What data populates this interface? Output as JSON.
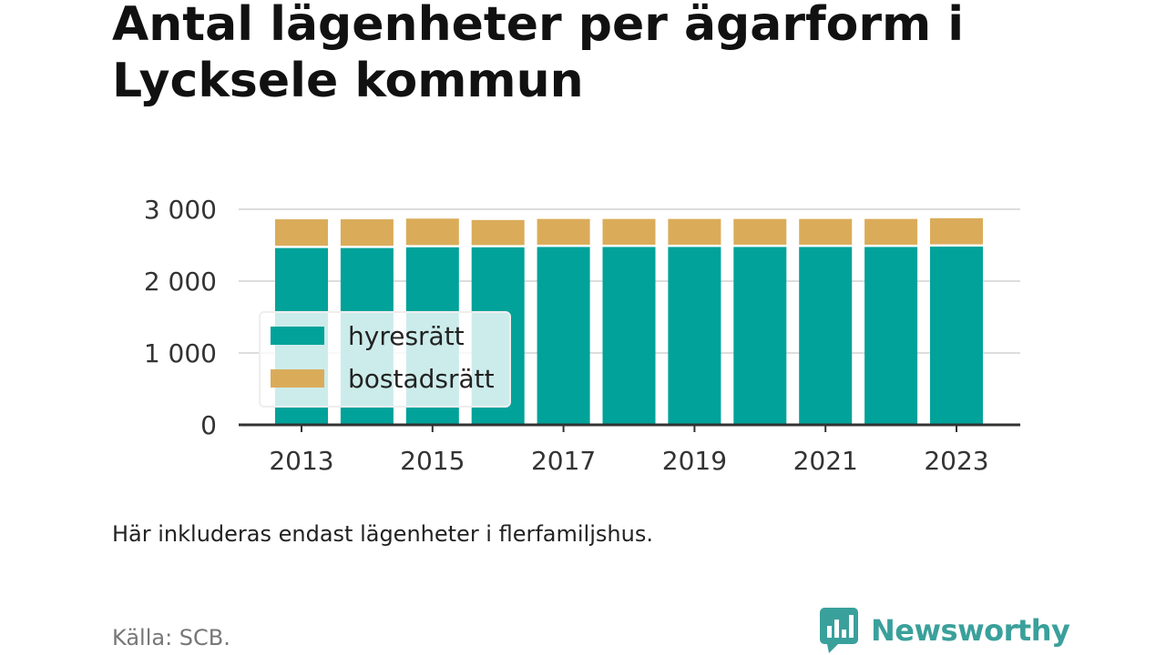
{
  "header": {
    "title": "Antal lägenheter per ägarform i Lycksele kommun"
  },
  "chart_data": {
    "type": "bar",
    "stacked": true,
    "title": "Antal lägenheter per ägarform i Lycksele kommun",
    "xlabel": "",
    "ylabel": "",
    "categories": [
      "2013",
      "2014",
      "2015",
      "2016",
      "2017",
      "2018",
      "2019",
      "2020",
      "2021",
      "2022",
      "2023"
    ],
    "x_tick_labels": [
      "2013",
      "2015",
      "2017",
      "2019",
      "2021",
      "2023"
    ],
    "y_ticks": [
      0,
      1000,
      2000,
      3000
    ],
    "y_tick_labels": [
      "0",
      "1 000",
      "2 000",
      "3 000"
    ],
    "ylim": [
      0,
      3000
    ],
    "grid": true,
    "legend_position": "left-middle",
    "series": [
      {
        "name": "hyresrätt",
        "color": "#00a29a",
        "values": [
          2460,
          2460,
          2470,
          2470,
          2475,
          2475,
          2475,
          2475,
          2475,
          2475,
          2480
        ]
      },
      {
        "name": "bostadsrätt",
        "color": "#daac5a",
        "values": [
          400,
          400,
          400,
          380,
          390,
          390,
          390,
          390,
          390,
          390,
          395
        ]
      }
    ]
  },
  "footer": {
    "note": "Här inkluderas endast lägenheter i flerfamiljshus.",
    "source": "Källa: SCB.",
    "brand": "Newsworthy",
    "brand_color": "#3aa09b"
  }
}
